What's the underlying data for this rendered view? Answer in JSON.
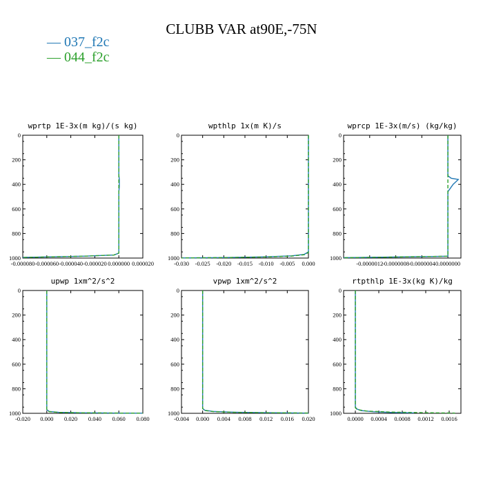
{
  "title": "CLUBB VAR at90E,-75N",
  "legend": [
    {
      "label": "— 037_f2c",
      "color": "#1f77b4"
    },
    {
      "label": "— 044_f2c",
      "color": "#2ca02c"
    }
  ],
  "chart_data": [
    {
      "type": "line",
      "title": "wprtp  1E-3x(m kg)/(s kg)",
      "xlim": [
        -8e-05,
        2e-05
      ],
      "ylim": [
        1000,
        0
      ],
      "xticks": [
        "-0.000080",
        "-0.000060",
        "-0.000040",
        "-0.000020",
        "0.000000",
        "0.000020"
      ],
      "xtick_values": [
        -8e-05,
        -6e-05,
        -4e-05,
        -2e-05,
        0,
        2e-05
      ],
      "yticks": [
        "0",
        "200",
        "400",
        "600",
        "800",
        "1000"
      ],
      "ytick_values": [
        0,
        200,
        400,
        600,
        800,
        1000
      ],
      "series": [
        {
          "name": "037_f2c",
          "color": "#1f77b4",
          "x": [
            0,
            0,
            4e-07,
            4e-07,
            0,
            0,
            0,
            -4e-06,
            -3e-05,
            -8e-05
          ],
          "y": [
            0,
            320,
            360,
            420,
            460,
            800,
            960,
            975,
            985,
            995
          ]
        },
        {
          "name": "044_f2c",
          "color": "#2ca02c",
          "x": [
            0,
            0,
            0,
            -4e-06,
            -3e-05,
            -8e-05
          ],
          "y": [
            0,
            600,
            960,
            975,
            985,
            995
          ]
        }
      ]
    },
    {
      "type": "line",
      "title": "wpthlp  1x(m K)/s",
      "xlim": [
        -0.03,
        0.0
      ],
      "ylim": [
        1000,
        0
      ],
      "xticks": [
        "-0.030",
        "-0.025",
        "-0.020",
        "-0.015",
        "-0.010",
        "-0.005",
        "0.000"
      ],
      "xtick_values": [
        -0.03,
        -0.025,
        -0.02,
        -0.015,
        -0.01,
        -0.005,
        0
      ],
      "yticks": [
        "0",
        "200",
        "400",
        "600",
        "800",
        "1000"
      ],
      "ytick_values": [
        0,
        200,
        400,
        600,
        800,
        1000
      ],
      "series": [
        {
          "name": "037_f2c",
          "color": "#1f77b4",
          "x": [
            0,
            0,
            -0.001,
            -0.004,
            -0.01,
            -0.02,
            -0.03
          ],
          "y": [
            0,
            950,
            970,
            982,
            990,
            996,
            999
          ]
        },
        {
          "name": "044_f2c",
          "color": "#2ca02c",
          "x": [
            0,
            0,
            -0.001,
            -0.004,
            -0.01,
            -0.02,
            -0.03
          ],
          "y": [
            0,
            955,
            973,
            984,
            991,
            996,
            999
          ]
        }
      ]
    },
    {
      "type": "line",
      "title": "wprcp  1E-3x(m/s) (kg/kg)",
      "xlim": [
        -1.6e-06,
        2e-07
      ],
      "ylim": [
        1000,
        0
      ],
      "xticks": [
        "-0.0000012",
        "-0.0000008",
        "-0.0000004",
        "0.0000000"
      ],
      "xtick_values": [
        -1.2e-06,
        -8e-07,
        -4e-07,
        0
      ],
      "yticks": [
        "0",
        "200",
        "400",
        "600",
        "800",
        "1000"
      ],
      "ytick_values": [
        0,
        200,
        400,
        600,
        800,
        1000
      ],
      "series": [
        {
          "name": "037_f2c",
          "color": "#1f77b4",
          "x": [
            0,
            0,
            5e-08,
            1.6e-07,
            8e-08,
            0,
            0,
            0,
            -1e-06,
            -1.6e-06
          ],
          "y": [
            0,
            330,
            350,
            360,
            400,
            460,
            700,
            985,
            993,
            997
          ]
        },
        {
          "name": "044_f2c",
          "color": "#2ca02c",
          "x": [
            0,
            0,
            0,
            -1e-06,
            -1.6e-06
          ],
          "y": [
            0,
            600,
            985,
            993,
            997
          ]
        }
      ]
    },
    {
      "type": "line",
      "title": "upwp  1xm^2/s^2",
      "xlim": [
        -0.02,
        0.08
      ],
      "ylim": [
        1000,
        0
      ],
      "xticks": [
        "-0.020",
        "0.000",
        "0.020",
        "0.040",
        "0.060",
        "0.080"
      ],
      "xtick_values": [
        -0.02,
        0,
        0.02,
        0.04,
        0.06,
        0.08
      ],
      "yticks": [
        "0",
        "200",
        "400",
        "600",
        "800",
        "1000"
      ],
      "ytick_values": [
        0,
        200,
        400,
        600,
        800,
        1000
      ],
      "series": [
        {
          "name": "037_f2c",
          "color": "#1f77b4",
          "x": [
            0,
            0,
            0.002,
            0.01,
            0.03,
            0.06,
            0.08
          ],
          "y": [
            0,
            970,
            985,
            992,
            996,
            998,
            999
          ]
        },
        {
          "name": "044_f2c",
          "color": "#2ca02c",
          "x": [
            0,
            0,
            0.002,
            0.01,
            0.03,
            0.06,
            0.08
          ],
          "y": [
            0,
            972,
            986,
            993,
            996,
            998,
            999
          ]
        }
      ]
    },
    {
      "type": "line",
      "title": "vpwp  1xm^2/s^2",
      "xlim": [
        -0.004,
        0.02
      ],
      "ylim": [
        1000,
        0
      ],
      "xticks": [
        "-0.004",
        "0.000",
        "0.004",
        "0.008",
        "0.012",
        "0.016",
        "0.020"
      ],
      "xtick_values": [
        -0.004,
        0,
        0.004,
        0.008,
        0.012,
        0.016,
        0.02
      ],
      "yticks": [
        "0",
        "200",
        "400",
        "600",
        "800",
        "1000"
      ],
      "ytick_values": [
        0,
        200,
        400,
        600,
        800,
        1000
      ],
      "series": [
        {
          "name": "037_f2c",
          "color": "#1f77b4",
          "x": [
            0,
            0,
            0.0004,
            0.002,
            0.006,
            0.012,
            0.02
          ],
          "y": [
            0,
            960,
            975,
            985,
            991,
            995,
            998
          ]
        },
        {
          "name": "044_f2c",
          "color": "#2ca02c",
          "x": [
            0,
            0,
            0.0004,
            0.002,
            0.006,
            0.012,
            0.02
          ],
          "y": [
            0,
            962,
            977,
            986,
            992,
            995,
            998
          ]
        }
      ]
    },
    {
      "type": "line",
      "title": "rtpthlp  1E-3x(kg K)/kg",
      "xlim": [
        -0.0002,
        0.0018
      ],
      "ylim": [
        1000,
        0
      ],
      "xticks": [
        "0.0000",
        "0.0004",
        "0.0008",
        "0.0012",
        "0.0016"
      ],
      "xtick_values": [
        0,
        0.0004,
        0.0008,
        0.0012,
        0.0016
      ],
      "yticks": [
        "0",
        "200",
        "400",
        "600",
        "800",
        "1000"
      ],
      "ytick_values": [
        0,
        200,
        400,
        600,
        800,
        1000
      ],
      "series": [
        {
          "name": "037_f2c",
          "color": "#1f77b4",
          "x": [
            0,
            0,
            3e-05,
            0.0001,
            0.0003,
            0.0006,
            0.001
          ],
          "y": [
            0,
            950,
            966,
            978,
            987,
            993,
            997
          ]
        },
        {
          "name": "044_f2c",
          "color": "#2ca02c",
          "x": [
            0,
            0,
            3e-05,
            0.0002,
            0.0006,
            0.0012,
            0.0017
          ],
          "y": [
            0,
            955,
            970,
            982,
            990,
            995,
            998
          ]
        }
      ]
    }
  ]
}
